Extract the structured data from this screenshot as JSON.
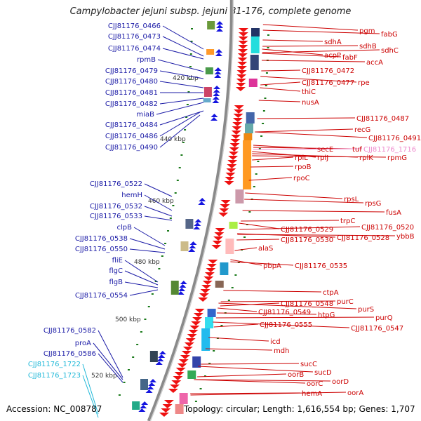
{
  "title": "Campylobacter jejuni subsp. jejuni 81-176, complete genome",
  "footer": {
    "accession": "Accession: NC_008787",
    "summary": "Topology: circular; Length: 1,616,554 bp; Genes: 1,707"
  },
  "ticks": [
    "420 kbp",
    "440 kbp",
    "460 kbp",
    "480 kbp",
    "500 kbp",
    "520 kbp"
  ],
  "left_labels": [
    {
      "text": "CJJ81176_0466",
      "color": "#1a1aa6"
    },
    {
      "text": "CJJ81176_0473",
      "color": "#1a1aa6"
    },
    {
      "text": "CJJ81176_0474",
      "color": "#1a1aa6"
    },
    {
      "text": "rpmB",
      "color": "#1a1aa6"
    },
    {
      "text": "CJJ81176_0479",
      "color": "#1a1aa6"
    },
    {
      "text": "CJJ81176_0480",
      "color": "#1a1aa6"
    },
    {
      "text": "CJJ81176_0481",
      "color": "#1a1aa6"
    },
    {
      "text": "CJJ81176_0482",
      "color": "#1a1aa6"
    },
    {
      "text": "miaB",
      "color": "#1a1aa6"
    },
    {
      "text": "CJJ81176_0484",
      "color": "#1a1aa6"
    },
    {
      "text": "CJJ81176_0486",
      "color": "#1a1aa6"
    },
    {
      "text": "CJJ81176_0490",
      "color": "#1a1aa6"
    },
    {
      "text": "CJJ81176_0522",
      "color": "#1a1aa6"
    },
    {
      "text": "hemH",
      "color": "#1a1aa6"
    },
    {
      "text": "CJJ81176_0532",
      "color": "#1a1aa6"
    },
    {
      "text": "CJJ81176_0533",
      "color": "#1a1aa6"
    },
    {
      "text": "clpB",
      "color": "#1a1aa6"
    },
    {
      "text": "CJJ81176_0538",
      "color": "#1a1aa6"
    },
    {
      "text": "CJJ81176_0550",
      "color": "#1a1aa6"
    },
    {
      "text": "fliE",
      "color": "#1a1aa6"
    },
    {
      "text": "flgC",
      "color": "#1a1aa6"
    },
    {
      "text": "flgB",
      "color": "#1a1aa6"
    },
    {
      "text": "CJJ81176_0554",
      "color": "#1a1aa6"
    },
    {
      "text": "CJJ81176_0582",
      "color": "#1a1aa6"
    },
    {
      "text": "proA",
      "color": "#1a1aa6"
    },
    {
      "text": "CJJ81176_0586",
      "color": "#1a1aa6"
    },
    {
      "text": "CJJ81176_1722",
      "color": "#20b8d8"
    },
    {
      "text": "CJJ81176_1723",
      "color": "#20b8d8"
    }
  ],
  "right_labels": [
    {
      "text": "pgm",
      "color": "#cc0000"
    },
    {
      "text": "fabG",
      "color": "#cc0000"
    },
    {
      "text": "sdhA",
      "color": "#cc0000"
    },
    {
      "text": "sdhB",
      "color": "#cc0000"
    },
    {
      "text": "sdhC",
      "color": "#cc0000"
    },
    {
      "text": "acpP",
      "color": "#cc0000"
    },
    {
      "text": "fabF",
      "color": "#cc0000"
    },
    {
      "text": "accA",
      "color": "#cc0000"
    },
    {
      "text": "CJJ81176_0472",
      "color": "#cc0000"
    },
    {
      "text": "CJJ81176_0477",
      "color": "#cc0000"
    },
    {
      "text": "rpe",
      "color": "#cc0000"
    },
    {
      "text": "thiC",
      "color": "#cc0000"
    },
    {
      "text": "nusA",
      "color": "#cc0000"
    },
    {
      "text": "CJJ81176_0487",
      "color": "#cc0000"
    },
    {
      "text": "recG",
      "color": "#cc0000"
    },
    {
      "text": "CJJ81176_0491",
      "color": "#cc0000"
    },
    {
      "text": "secE",
      "color": "#cc0000"
    },
    {
      "text": "tuf",
      "color": "#cc0000"
    },
    {
      "text": "CJJ81176_1716",
      "color": "#ee88cc"
    },
    {
      "text": "rplL",
      "color": "#cc0000"
    },
    {
      "text": "rplJ",
      "color": "#cc0000"
    },
    {
      "text": "rplK",
      "color": "#cc0000"
    },
    {
      "text": "rpmG",
      "color": "#cc0000"
    },
    {
      "text": "rpoB",
      "color": "#cc0000"
    },
    {
      "text": "rpoC",
      "color": "#cc0000"
    },
    {
      "text": "rpsL",
      "color": "#cc0000"
    },
    {
      "text": "rpsG",
      "color": "#cc0000"
    },
    {
      "text": "fusA",
      "color": "#cc0000"
    },
    {
      "text": "trpC",
      "color": "#cc0000"
    },
    {
      "text": "CJJ81176_0520",
      "color": "#cc0000"
    },
    {
      "text": "CJJ81176_0529",
      "color": "#cc0000"
    },
    {
      "text": "CJJ81176_0528",
      "color": "#cc0000"
    },
    {
      "text": "ybbB",
      "color": "#cc0000"
    },
    {
      "text": "CJJ81176_0530",
      "color": "#cc0000"
    },
    {
      "text": "alaS",
      "color": "#cc0000"
    },
    {
      "text": "pbpA",
      "color": "#cc0000"
    },
    {
      "text": "CJJ81176_0535",
      "color": "#cc0000"
    },
    {
      "text": "ctpA",
      "color": "#cc0000"
    },
    {
      "text": "purC",
      "color": "#cc0000"
    },
    {
      "text": "CJJ81176_0548",
      "color": "#cc0000"
    },
    {
      "text": "purS",
      "color": "#cc0000"
    },
    {
      "text": "CJJ81176_0549",
      "color": "#cc0000"
    },
    {
      "text": "htpG",
      "color": "#cc0000"
    },
    {
      "text": "purQ",
      "color": "#cc0000"
    },
    {
      "text": "CJJ81176_0555",
      "color": "#cc0000"
    },
    {
      "text": "CJJ81176_0547",
      "color": "#cc0000"
    },
    {
      "text": "icd",
      "color": "#cc0000"
    },
    {
      "text": "mdh",
      "color": "#cc0000"
    },
    {
      "text": "sucC",
      "color": "#cc0000"
    },
    {
      "text": "oorB",
      "color": "#cc0000"
    },
    {
      "text": "sucD",
      "color": "#cc0000"
    },
    {
      "text": "oorC",
      "color": "#cc0000"
    },
    {
      "text": "oorD",
      "color": "#cc0000"
    },
    {
      "text": "hemA",
      "color": "#cc0000"
    },
    {
      "text": "oorA",
      "color": "#cc0000"
    }
  ]
}
